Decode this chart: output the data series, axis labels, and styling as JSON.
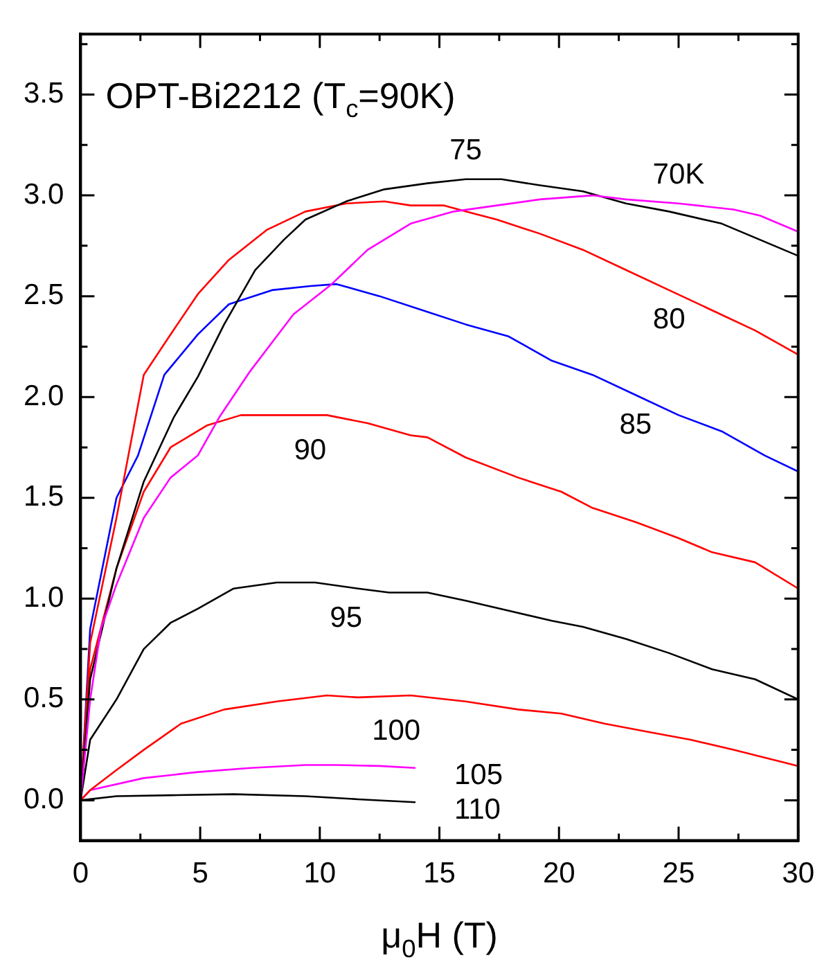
{
  "chart_data": {
    "type": "line",
    "title": "OPT-Bi2212 (T$_{c}$=90K)",
    "xlabel": "μ$_{0}$H (T)",
    "xlim": [
      0,
      30
    ],
    "ylim": [
      -0.2,
      3.8
    ],
    "xticks": [
      0,
      {
        "value": 2.5,
        "label": null
      },
      5,
      {
        "value": 7.5,
        "label": null
      },
      10,
      {
        "value": 12.5,
        "label": null
      },
      15,
      {
        "value": 17.5,
        "label": null
      },
      20,
      {
        "value": 22.5,
        "label": null
      },
      25,
      {
        "value": 27.5,
        "label": null
      },
      30
    ],
    "yticks": [
      {
        "value": 0,
        "label": "0.0"
      },
      {
        "value": 0.25,
        "label": null
      },
      {
        "value": 0.5,
        "label": "0.5"
      },
      {
        "value": 0.75,
        "label": null
      },
      {
        "value": 1,
        "label": "1.0"
      },
      {
        "value": 1.25,
        "label": null
      },
      {
        "value": 1.5,
        "label": "1.5"
      },
      {
        "value": 1.75,
        "label": null
      },
      {
        "value": 2,
        "label": "2.0"
      },
      {
        "value": 2.25,
        "label": null
      },
      {
        "value": 2.5,
        "label": "2.5"
      },
      {
        "value": 2.75,
        "label": null
      },
      {
        "value": 3,
        "label": "3.0"
      },
      {
        "value": 3.25,
        "label": null
      },
      {
        "value": 3.5,
        "label": "3.5"
      },
      {
        "value": 3.75,
        "label": null
      }
    ],
    "grid": false,
    "legend": false,
    "marker": "none",
    "line_style": "solid",
    "series": [
      {
        "name": "70K",
        "color": "#ff00ff",
        "x": [
          0,
          0.4,
          0.85,
          1.5,
          2.64,
          3.76,
          4.9,
          5.8,
          7.1,
          8.9,
          10.5,
          12.0,
          13.8,
          15.6,
          17.4,
          19.2,
          21.4,
          22.8,
          25,
          27.3,
          28.4,
          30
        ],
        "values": [
          0,
          0.5,
          0.85,
          1.07,
          1.4,
          1.6,
          1.71,
          1.9,
          2.13,
          2.41,
          2.56,
          2.73,
          2.86,
          2.92,
          2.95,
          2.98,
          3.0,
          2.98,
          2.96,
          2.93,
          2.9,
          2.82
        ]
      },
      {
        "name": "75",
        "color": "#000000",
        "x": [
          0,
          0.4,
          1.5,
          2.64,
          3.9,
          4.9,
          6.0,
          7.3,
          8.5,
          9.4,
          11.1,
          12.7,
          14.5,
          16.1,
          17.6,
          19.2,
          21,
          22.8,
          24.6,
          26.8,
          28.4,
          30
        ],
        "values": [
          0,
          0.6,
          1.15,
          1.58,
          1.9,
          2.1,
          2.36,
          2.63,
          2.78,
          2.88,
          2.97,
          3.03,
          3.06,
          3.08,
          3.08,
          3.05,
          3.02,
          2.96,
          2.92,
          2.86,
          2.78,
          2.7
        ]
      },
      {
        "name": "80",
        "color": "#ff0000",
        "x": [
          0,
          0.4,
          1.5,
          2.64,
          3.76,
          4.9,
          6.2,
          7.8,
          9.4,
          11.1,
          12.7,
          13.8,
          15.2,
          16.1,
          17.4,
          19.2,
          21,
          22.8,
          24.6,
          26.4,
          28.2,
          30
        ],
        "values": [
          0,
          0.78,
          1.4,
          2.11,
          2.31,
          2.51,
          2.68,
          2.83,
          2.92,
          2.96,
          2.97,
          2.95,
          2.95,
          2.92,
          2.88,
          2.81,
          2.73,
          2.63,
          2.53,
          2.43,
          2.33,
          2.21
        ]
      },
      {
        "name": "85",
        "color": "#0000ff",
        "x": [
          0,
          0.4,
          1.5,
          2.4,
          3.5,
          4.9,
          6.2,
          8.0,
          9.6,
          10.7,
          12.5,
          14.3,
          16.1,
          17.9,
          19.7,
          21.4,
          23.2,
          25,
          26.8,
          28.6,
          30
        ],
        "values": [
          0,
          0.85,
          1.5,
          1.71,
          2.11,
          2.31,
          2.46,
          2.53,
          2.55,
          2.56,
          2.5,
          2.43,
          2.36,
          2.3,
          2.18,
          2.11,
          2.01,
          1.91,
          1.83,
          1.71,
          1.63
        ]
      },
      {
        "name": "90",
        "color": "#ff0000",
        "x": [
          0,
          0.4,
          1.5,
          2.64,
          3.76,
          5.3,
          6.7,
          8.5,
          10.3,
          12.0,
          13.8,
          14.5,
          16.1,
          18.3,
          20.1,
          21.4,
          23.2,
          25,
          26.4,
          28.2,
          30
        ],
        "values": [
          0,
          0.65,
          1.15,
          1.53,
          1.75,
          1.86,
          1.91,
          1.91,
          1.91,
          1.87,
          1.81,
          1.8,
          1.7,
          1.6,
          1.53,
          1.45,
          1.38,
          1.3,
          1.23,
          1.18,
          1.05
        ]
      },
      {
        "name": "95",
        "color": "#000000",
        "x": [
          0,
          0.4,
          1.5,
          2.64,
          3.76,
          4.9,
          6.4,
          8.2,
          9.8,
          11.6,
          12.9,
          14.5,
          16.1,
          17.9,
          19.7,
          21,
          22.8,
          24.6,
          26.4,
          28.2,
          30
        ],
        "values": [
          0,
          0.3,
          0.5,
          0.75,
          0.88,
          0.95,
          1.05,
          1.08,
          1.08,
          1.05,
          1.03,
          1.03,
          0.99,
          0.94,
          0.89,
          0.86,
          0.8,
          0.73,
          0.65,
          0.6,
          0.5
        ]
      },
      {
        "name": "100",
        "color": "#ff0000",
        "x": [
          0,
          0.4,
          1.5,
          2.64,
          4.2,
          6.0,
          8.2,
          10.3,
          11.6,
          13.8,
          16.1,
          18.3,
          20.1,
          21.9,
          23.7,
          25.5,
          27.3,
          30
        ],
        "values": [
          0,
          0.05,
          0.15,
          0.25,
          0.38,
          0.45,
          0.49,
          0.52,
          0.51,
          0.52,
          0.49,
          0.45,
          0.43,
          0.38,
          0.34,
          0.3,
          0.25,
          0.17
        ]
      },
      {
        "name": "105",
        "color": "#ff00ff",
        "x": [
          0,
          0.4,
          2.64,
          4.9,
          7.1,
          9.4,
          10.7,
          12.5,
          14.0
        ],
        "values": [
          0,
          0.05,
          0.11,
          0.14,
          0.16,
          0.175,
          0.175,
          0.17,
          0.16
        ]
      },
      {
        "name": "110",
        "color": "#000000",
        "x": [
          0,
          1.5,
          3.8,
          6.4,
          9.4,
          11.6,
          14.0
        ],
        "values": [
          0,
          0.02,
          0.025,
          0.03,
          0.02,
          0.005,
          -0.01
        ]
      }
    ]
  }
}
